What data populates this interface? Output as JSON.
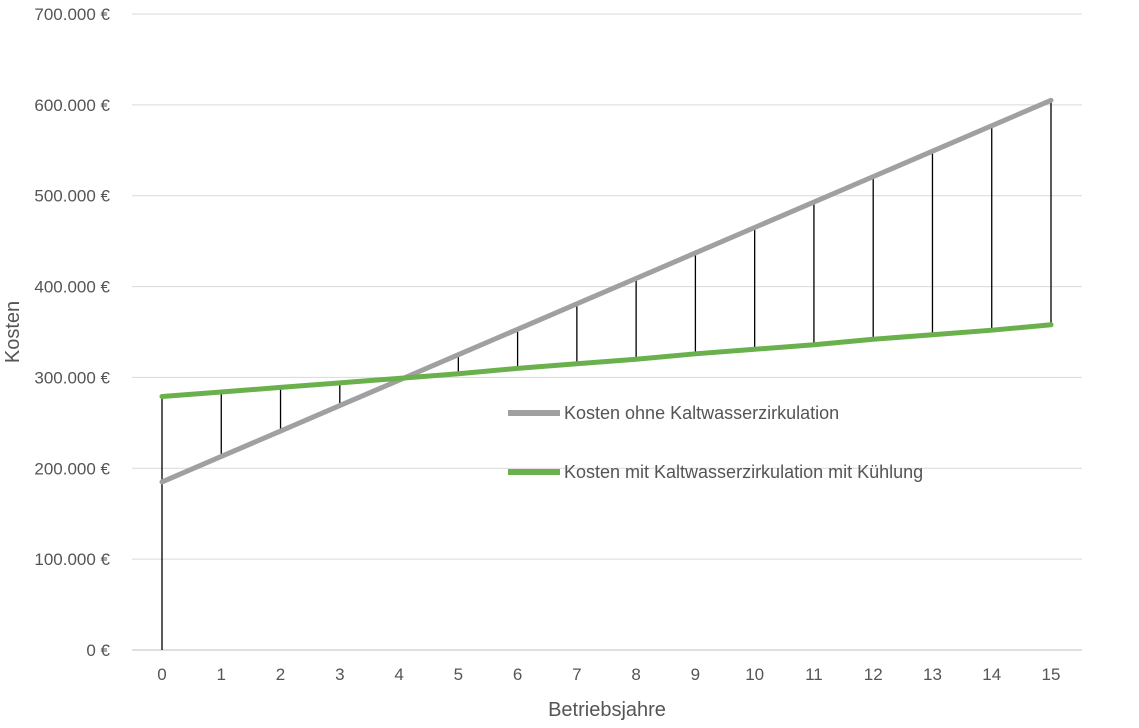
{
  "chart_data": {
    "type": "line",
    "title": "",
    "xlabel": "Betriebsjahre",
    "ylabel": "Kosten",
    "x": [
      0,
      1,
      2,
      3,
      4,
      5,
      6,
      7,
      8,
      9,
      10,
      11,
      12,
      13,
      14,
      15
    ],
    "xticks": [
      "0",
      "1",
      "2",
      "3",
      "4",
      "5",
      "6",
      "7",
      "8",
      "9",
      "10",
      "11",
      "12",
      "13",
      "14",
      "15"
    ],
    "ylim": [
      0,
      700000
    ],
    "yticks": [
      {
        "value": 0,
        "label": "0 €"
      },
      {
        "value": 100000,
        "label": "100.000 €"
      },
      {
        "value": 200000,
        "label": "200.000 €"
      },
      {
        "value": 300000,
        "label": "300.000 €"
      },
      {
        "value": 400000,
        "label": "400.000 €"
      },
      {
        "value": 500000,
        "label": "500.000 €"
      },
      {
        "value": 600000,
        "label": "600.000 €"
      },
      {
        "value": 700000,
        "label": "700.000 €"
      }
    ],
    "grid": true,
    "legend_position": "center-right",
    "series": [
      {
        "name": "Kosten ohne Kaltwasserzirkulation",
        "color": "#a0a0a0",
        "values": [
          185000,
          213000,
          241000,
          269000,
          297000,
          325000,
          353000,
          381000,
          409000,
          437000,
          465000,
          493000,
          521000,
          549000,
          577000,
          605000
        ]
      },
      {
        "name": "Kosten mit Kaltwasserzirkulation mit Kühlung",
        "color": "#6ab04c",
        "values": [
          279000,
          284000,
          289000,
          294000,
          299000,
          304000,
          310000,
          315000,
          320000,
          326000,
          331000,
          336000,
          342000,
          347000,
          352000,
          358000
        ]
      }
    ],
    "difference_lines": {
      "color": "#000000",
      "from_zero_at_first": true
    }
  }
}
